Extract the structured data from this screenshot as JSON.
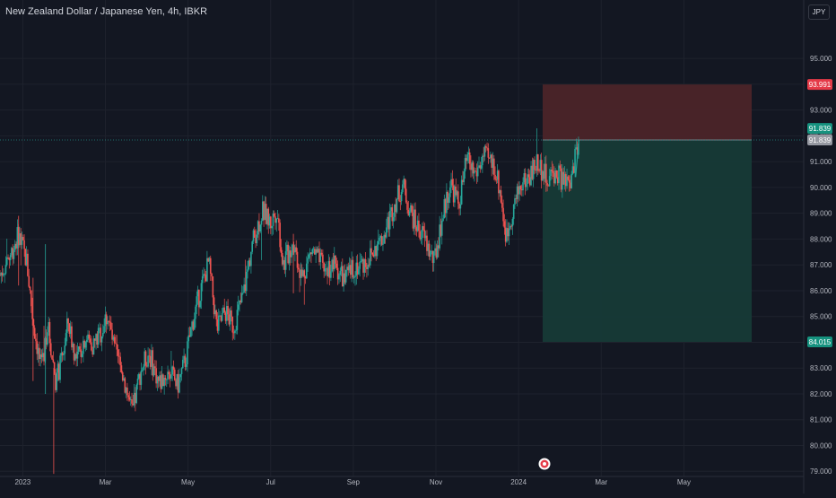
{
  "header": {
    "title": "New Zealand Dollar / Japanese Yen, 4h, IBKR",
    "currency_button": "JPY"
  },
  "colors": {
    "background": "#131722",
    "grid": "#1e222d",
    "bull": "#26a69a",
    "bear": "#ef5350",
    "stop_zone": "#4b2429",
    "target_zone": "#163a37",
    "entry_label_bg": "#9598a1",
    "stop_label_bg": "#e53b48",
    "target_label_bg": "#16927f",
    "axis_text": "#b2b5be"
  },
  "position_tool": {
    "type": "short",
    "entry": 91.839,
    "stop": 93.991,
    "target": 84.015,
    "last_price": 91.839,
    "labels": [
      "93.991",
      "91.839",
      "91.839",
      "84.015"
    ]
  },
  "chart_data": {
    "type": "candlestick",
    "title": "New Zealand Dollar / Japanese Yen, 4h, IBKR",
    "ylim": [
      78.8,
      96.5
    ],
    "y_ticks": [
      95,
      94,
      93,
      92,
      91,
      90,
      89,
      88,
      87,
      86,
      85,
      84,
      83,
      82,
      81,
      80,
      79
    ],
    "y_tick_labels": [
      "95.000",
      "94.000",
      "93.000",
      "92.000",
      "91.000",
      "90.000",
      "89.000",
      "88.000",
      "87.000",
      "86.000",
      "85.000",
      "84.000",
      "83.000",
      "82.000",
      "81.000",
      "80.000",
      "79.000"
    ],
    "x_ticks": [
      "2023",
      "Mar",
      "May",
      "Jul",
      "Sep",
      "Nov",
      "2024",
      "Mar",
      "May"
    ],
    "x_tick_months": [
      0,
      2,
      4,
      6,
      8,
      10,
      12,
      14,
      16
    ],
    "x_domain_months": [
      -0.55,
      18.9
    ],
    "grid": true,
    "price_path": [
      [
        -0.55,
        86.6
      ],
      [
        -0.3,
        87.4
      ],
      [
        -0.1,
        88.2
      ],
      [
        0.1,
        87.1
      ],
      [
        0.25,
        84.8
      ],
      [
        0.45,
        82.9
      ],
      [
        0.6,
        84.7
      ],
      [
        0.8,
        82.5
      ],
      [
        0.95,
        83.3
      ],
      [
        1.1,
        84.8
      ],
      [
        1.3,
        83.2
      ],
      [
        1.5,
        84.2
      ],
      [
        1.7,
        83.9
      ],
      [
        1.9,
        84.4
      ],
      [
        2.05,
        85.1
      ],
      [
        2.2,
        83.8
      ],
      [
        2.45,
        82.6
      ],
      [
        2.65,
        81.2
      ],
      [
        2.85,
        82.9
      ],
      [
        3.05,
        83.6
      ],
      [
        3.3,
        82.4
      ],
      [
        3.55,
        82.9
      ],
      [
        3.75,
        82.3
      ],
      [
        3.95,
        83.4
      ],
      [
        4.1,
        84.7
      ],
      [
        4.3,
        86.0
      ],
      [
        4.5,
        87.1
      ],
      [
        4.7,
        84.5
      ],
      [
        4.9,
        85.2
      ],
      [
        5.1,
        84.6
      ],
      [
        5.35,
        85.9
      ],
      [
        5.55,
        87.8
      ],
      [
        5.8,
        89.1
      ],
      [
        6.0,
        88.6
      ],
      [
        6.15,
        89.2
      ],
      [
        6.3,
        87.0
      ],
      [
        6.55,
        87.9
      ],
      [
        6.75,
        86.5
      ],
      [
        7.0,
        87.6
      ],
      [
        7.3,
        86.8
      ],
      [
        7.55,
        87.0
      ],
      [
        7.8,
        86.4
      ],
      [
        8.0,
        86.9
      ],
      [
        8.3,
        87.1
      ],
      [
        8.55,
        87.6
      ],
      [
        8.75,
        88.2
      ],
      [
        9.0,
        89.4
      ],
      [
        9.2,
        90.1
      ],
      [
        9.35,
        89.2
      ],
      [
        9.5,
        88.6
      ],
      [
        9.7,
        88.1
      ],
      [
        9.95,
        87.1
      ],
      [
        10.15,
        88.8
      ],
      [
        10.35,
        90.2
      ],
      [
        10.55,
        89.3
      ],
      [
        10.75,
        91.1
      ],
      [
        10.95,
        90.5
      ],
      [
        11.15,
        91.2
      ],
      [
        11.4,
        90.9
      ],
      [
        11.55,
        89.9
      ],
      [
        11.7,
        88.0
      ],
      [
        11.85,
        89.1
      ],
      [
        12.05,
        90.1
      ],
      [
        12.25,
        90.4
      ],
      [
        12.45,
        91.0
      ],
      [
        12.7,
        90.3
      ],
      [
        12.9,
        90.6
      ],
      [
        13.1,
        90.2
      ],
      [
        13.25,
        90.0
      ],
      [
        13.35,
        91.0
      ],
      [
        13.45,
        91.839
      ]
    ]
  }
}
